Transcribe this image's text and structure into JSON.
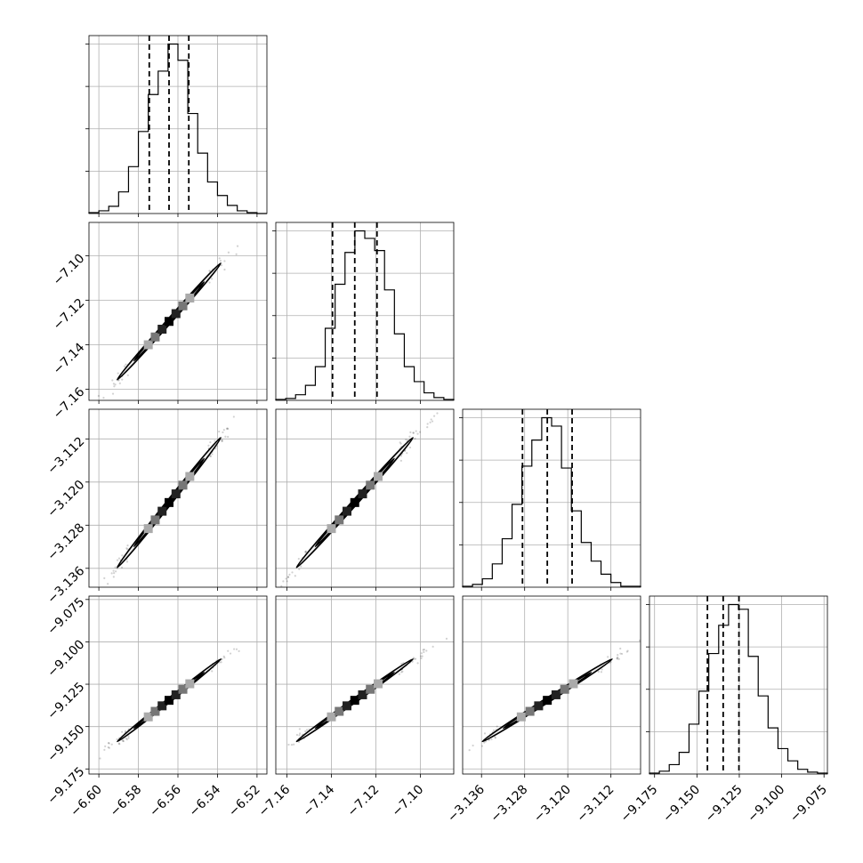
{
  "chart_data": {
    "type": "corner",
    "title": "",
    "parameters": [
      {
        "name": "",
        "range": [
          -6.605,
          -6.515
        ],
        "ticks": [
          "−6.60",
          "−6.58",
          "−6.56",
          "−6.54",
          "−6.52"
        ],
        "tick_values": [
          -6.6,
          -6.58,
          -6.56,
          -6.54,
          -6.52
        ],
        "quantiles": [
          -6.5745,
          -6.5645,
          -6.5545
        ]
      },
      {
        "name": "",
        "range": [
          -7.165,
          -7.085
        ],
        "ticks": [
          "−7.16",
          "−7.14",
          "−7.12",
          "−7.10"
        ],
        "tick_values": [
          -7.16,
          -7.14,
          -7.12,
          -7.1
        ],
        "quantiles": [
          -7.1395,
          -7.1295,
          -7.1195
        ]
      },
      {
        "name": "",
        "range": [
          -3.1395,
          -3.1065
        ],
        "ticks": [
          "−3.136",
          "−3.128",
          "−3.120",
          "−3.112"
        ],
        "tick_values": [
          -3.136,
          -3.128,
          -3.12,
          -3.112
        ],
        "quantiles": [
          -3.1284,
          -3.1238,
          -3.1192
        ]
      },
      {
        "name": "",
        "range": [
          -9.178,
          -9.073
        ],
        "ticks": [
          "−9.175",
          "−9.150",
          "−9.125",
          "−9.100",
          "−9.075"
        ],
        "tick_values": [
          -9.175,
          -9.15,
          -9.125,
          -9.1,
          -9.075
        ],
        "quantiles": [
          -9.1438,
          -9.1345,
          -9.1252
        ]
      }
    ],
    "histograms": [
      {
        "param": 0,
        "counts": [
          1,
          3,
          8,
          24,
          52,
          91,
          132,
          158,
          188,
          170,
          111,
          67,
          35,
          20,
          9,
          3,
          1,
          0
        ]
      },
      {
        "param": 1,
        "counts": [
          1,
          2,
          6,
          16,
          36,
          77,
          124,
          158,
          181,
          173,
          160,
          118,
          71,
          36,
          20,
          8,
          3,
          1
        ]
      },
      {
        "param": 2,
        "counts": [
          1,
          3,
          9,
          25,
          52,
          89,
          130,
          158,
          182,
          173,
          128,
          82,
          48,
          28,
          14,
          5,
          1,
          1
        ]
      },
      {
        "param": 3,
        "counts": [
          1,
          3,
          10,
          23,
          53,
          88,
          128,
          158,
          180,
          175,
          125,
          83,
          49,
          27,
          14,
          5,
          2,
          1
        ]
      }
    ],
    "correlation": 0.99,
    "grid": true,
    "legend": "none"
  }
}
